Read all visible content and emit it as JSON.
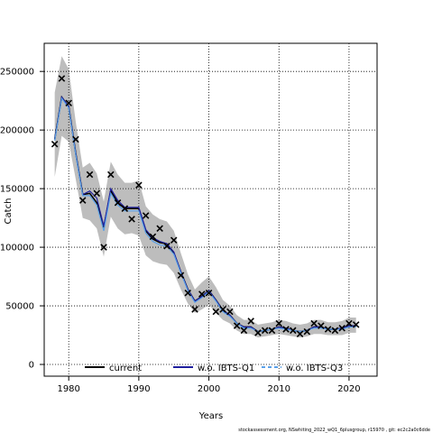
{
  "chart_data": {
    "type": "line",
    "xlabel": "Years",
    "ylabel": "Catch",
    "xlim": [
      1976.5,
      2024
    ],
    "ylim": [
      -10000,
      274000
    ],
    "xticks": [
      1980,
      1990,
      2000,
      2010,
      2020
    ],
    "yticks": [
      0,
      50000,
      100000,
      150000,
      200000,
      250000
    ],
    "ytick_labels": [
      "0",
      "50000",
      "100000",
      "150000",
      "200000",
      "250000"
    ],
    "grid": true,
    "legend_position": "bottom",
    "x": [
      1978,
      1979,
      1980,
      1981,
      1982,
      1983,
      1984,
      1985,
      1986,
      1987,
      1988,
      1989,
      1990,
      1991,
      1992,
      1993,
      1994,
      1995,
      1996,
      1997,
      1998,
      1999,
      2000,
      2001,
      2002,
      2003,
      2004,
      2005,
      2006,
      2007,
      2008,
      2009,
      2010,
      2011,
      2012,
      2013,
      2014,
      2015,
      2016,
      2017,
      2018,
      2019,
      2020,
      2021
    ],
    "observed": [
      188000,
      244000,
      223000,
      192000,
      140000,
      162000,
      146000,
      100000,
      162000,
      138000,
      133000,
      124000,
      153000,
      127000,
      109000,
      116000,
      101000,
      106000,
      76000,
      61000,
      47000,
      60000,
      61000,
      45000,
      47000,
      45000,
      33000,
      29000,
      37000,
      27000,
      29000,
      29000,
      35000,
      30000,
      29000,
      26000,
      28000,
      35000,
      33000,
      30000,
      29000,
      31000,
      35000,
      34000
    ],
    "series": [
      {
        "name": "current",
        "color": "#000000",
        "dash": "",
        "values": [
          192000,
          228000,
          220000,
          180000,
          145000,
          146000,
          138000,
          117000,
          148000,
          138000,
          133000,
          133000,
          133000,
          114000,
          107000,
          104000,
          103000,
          95000,
          79000,
          64000,
          54000,
          58000,
          63000,
          55000,
          46000,
          42000,
          35000,
          32000,
          32000,
          28000,
          29000,
          30000,
          32000,
          31000,
          29000,
          28000,
          29000,
          32000,
          32000,
          30000,
          30000,
          31000,
          33000,
          33000
        ]
      },
      {
        "name": "w.o. IBTS-Q1",
        "color": "#1f1f9e",
        "dash": "",
        "values": [
          192000,
          228000,
          220000,
          180000,
          145000,
          148000,
          142000,
          118000,
          150000,
          140000,
          134000,
          134000,
          134000,
          115000,
          108000,
          105000,
          103000,
          96000,
          79000,
          64000,
          54000,
          58000,
          63000,
          55000,
          46000,
          42000,
          35000,
          32000,
          32000,
          28000,
          29000,
          30000,
          32000,
          31000,
          29000,
          28000,
          29000,
          32000,
          32000,
          30000,
          30000,
          31000,
          33000,
          33000
        ]
      },
      {
        "name": "w.o. IBTS-Q3",
        "color": "#5aa0e8",
        "dash": "4,3",
        "values": [
          191000,
          227000,
          219000,
          179000,
          144000,
          144000,
          136000,
          114000,
          146000,
          136000,
          131000,
          131000,
          131000,
          112000,
          105000,
          102000,
          101000,
          94000,
          78000,
          63000,
          53000,
          57000,
          62000,
          54000,
          45000,
          41000,
          35000,
          31000,
          31000,
          28000,
          29000,
          30000,
          31000,
          30000,
          29000,
          28000,
          29000,
          31000,
          31000,
          30000,
          30000,
          30000,
          32000,
          32000
        ]
      }
    ],
    "ci_lower": [
      160000,
      195000,
      190000,
      158000,
      125000,
      123000,
      116000,
      92000,
      126000,
      116000,
      111000,
      112000,
      110000,
      93000,
      88000,
      86000,
      85000,
      78000,
      64000,
      52000,
      44000,
      47000,
      51000,
      44000,
      38000,
      35000,
      29000,
      26000,
      26000,
      23000,
      24000,
      25000,
      26000,
      25000,
      24000,
      23000,
      24000,
      26000,
      26000,
      25000,
      25000,
      25000,
      27000,
      27000
    ],
    "ci_upper": [
      232000,
      263000,
      252000,
      207000,
      168000,
      172000,
      163000,
      139000,
      173000,
      162000,
      155000,
      155000,
      157000,
      135000,
      128000,
      124000,
      122000,
      114000,
      95000,
      77000,
      64000,
      70000,
      75000,
      66000,
      55000,
      50000,
      42000,
      38000,
      38000,
      34000,
      35000,
      36000,
      38000,
      37000,
      35000,
      34000,
      35000,
      38000,
      38000,
      36000,
      36000,
      37000,
      40000,
      40000
    ],
    "ci_color": "#bdbdbd",
    "marker": "x"
  },
  "footer": {
    "credit": "stockassessment.org, NSwhiting_2022_wQ1_6plusgroup, r15970 , git: ec2c2a0c6dde"
  }
}
